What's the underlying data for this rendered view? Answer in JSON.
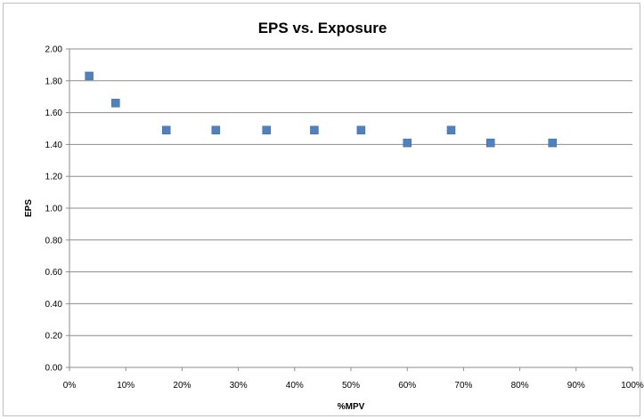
{
  "chart_data": {
    "type": "scatter",
    "title": "EPS vs. Exposure",
    "xlabel": "%MPV",
    "ylabel": "EPS",
    "xlim": [
      0,
      100
    ],
    "ylim": [
      0,
      2.0
    ],
    "x_ticks": [
      "0%",
      "10%",
      "20%",
      "30%",
      "40%",
      "50%",
      "60%",
      "70%",
      "80%",
      "90%",
      "100%"
    ],
    "y_ticks": [
      "0.00",
      "0.20",
      "0.40",
      "0.60",
      "0.80",
      "1.00",
      "1.20",
      "1.40",
      "1.60",
      "1.80",
      "2.00"
    ],
    "grid": "horizontal",
    "marker_color": "#4f81bd",
    "points": [
      {
        "x": 3.5,
        "y": 1.83
      },
      {
        "x": 8.2,
        "y": 1.66
      },
      {
        "x": 17.2,
        "y": 1.49
      },
      {
        "x": 26.0,
        "y": 1.49
      },
      {
        "x": 35.0,
        "y": 1.49
      },
      {
        "x": 43.5,
        "y": 1.49
      },
      {
        "x": 51.8,
        "y": 1.49
      },
      {
        "x": 60.0,
        "y": 1.41
      },
      {
        "x": 67.8,
        "y": 1.49
      },
      {
        "x": 74.8,
        "y": 1.41
      },
      {
        "x": 85.8,
        "y": 1.41
      }
    ]
  }
}
